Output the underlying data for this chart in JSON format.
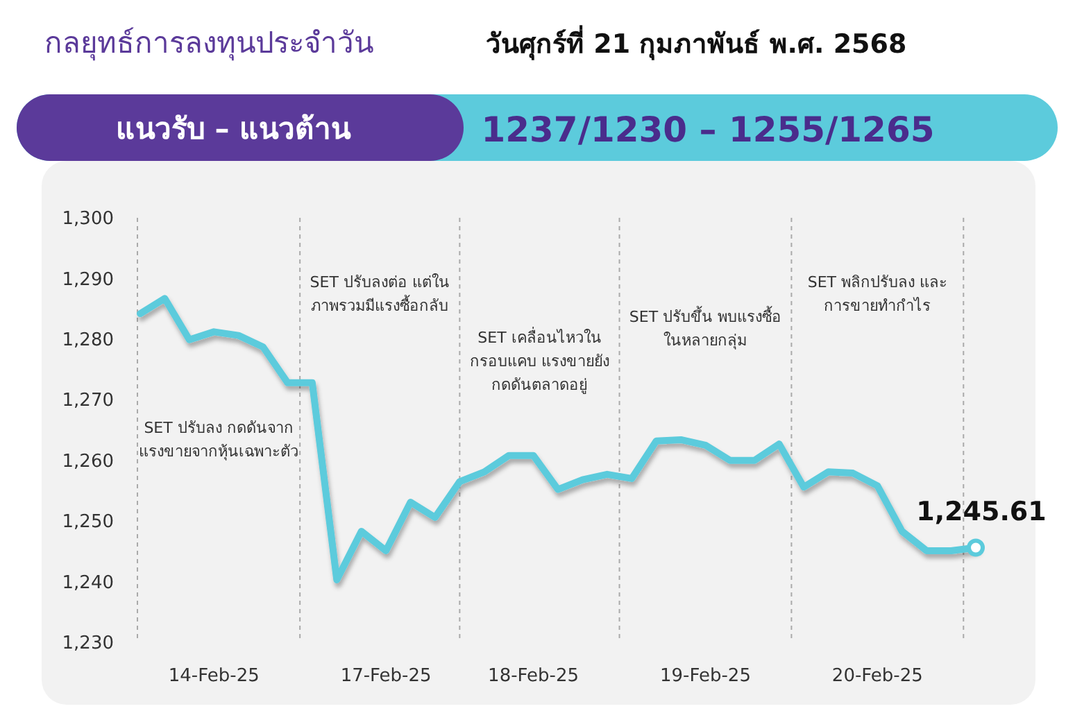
{
  "chart_data": {
    "type": "line",
    "title": "กลยุทธ์การลงทุนประจำวัน",
    "subtitle": "วันศุกร์ที่ 21 กุมภาพันธ์ พ.ศ. 2568",
    "annotations": [
      "SET ปรับลง กดดันจากแรงขายจากหุ้นเฉพาะตัว",
      "SET ปรับลงต่อ แต่ในภาพรวมมีแรงซื้อกลับ",
      "SET เคลื่อนไหวในกรอบแคบ แรงขายยังกดดันตลาดอยู่",
      "SET ปรับขึ้น พบแรงซื้อในหลายกลุ่ม",
      "SET พลิกปรับลง และการขายทำกำไร",
      "แนวรับ – แนวต้าน",
      "1237/1230 – 1255/1265"
    ],
    "categories": [
      null,
      null,
      null,
      "14-Feb-25",
      null,
      null,
      null,
      null,
      null,
      null,
      "17-Feb-25",
      null,
      null,
      null,
      null,
      null,
      "18-Feb-25",
      null,
      null,
      null,
      null,
      null,
      null,
      "19-Feb-25",
      null,
      null,
      null,
      null,
      null,
      null,
      "20-Feb-25",
      null,
      null,
      null,
      null
    ],
    "grid": "x",
    "ylim": [
      1230,
      1300
    ],
    "yticks": [
      {
        "value": 1230,
        "label": "1,230"
      },
      {
        "value": 1240,
        "label": "1,240"
      },
      {
        "value": 1250,
        "label": "1,250"
      },
      {
        "value": 1260,
        "label": "1,260"
      },
      {
        "value": 1270,
        "label": "1,270"
      },
      {
        "value": 1280,
        "label": "1,280"
      },
      {
        "value": 1290,
        "label": "1,290"
      },
      {
        "value": 1300,
        "label": "1,300"
      }
    ],
    "series": [
      {
        "color": "#5ccbdc",
        "values": [
          1284.2,
          1286.7,
          1279.9,
          1281.2,
          1280.6,
          1278.7,
          1272.8,
          1272.8,
          1240.3,
          1248.3,
          1245.1,
          1253.1,
          1250.6,
          1256.5,
          1258.1,
          1260.8,
          1260.8,
          1255.2,
          1256.8,
          1257.7,
          1257.0,
          1263.2,
          1263.4,
          1262.5,
          1260.0,
          1260.0,
          1262.7,
          1255.6,
          1258.1,
          1257.9,
          1255.8,
          1248.3,
          1245.1,
          1245.1,
          1245.61
        ],
        "value_labels": [
          null,
          null,
          null,
          null,
          null,
          null,
          null,
          null,
          null,
          null,
          null,
          null,
          null,
          null,
          null,
          null,
          null,
          null,
          null,
          null,
          null,
          null,
          null,
          null,
          null,
          null,
          null,
          null,
          null,
          null,
          null,
          null,
          null,
          null,
          "1,245.61"
        ]
      }
    ]
  }
}
